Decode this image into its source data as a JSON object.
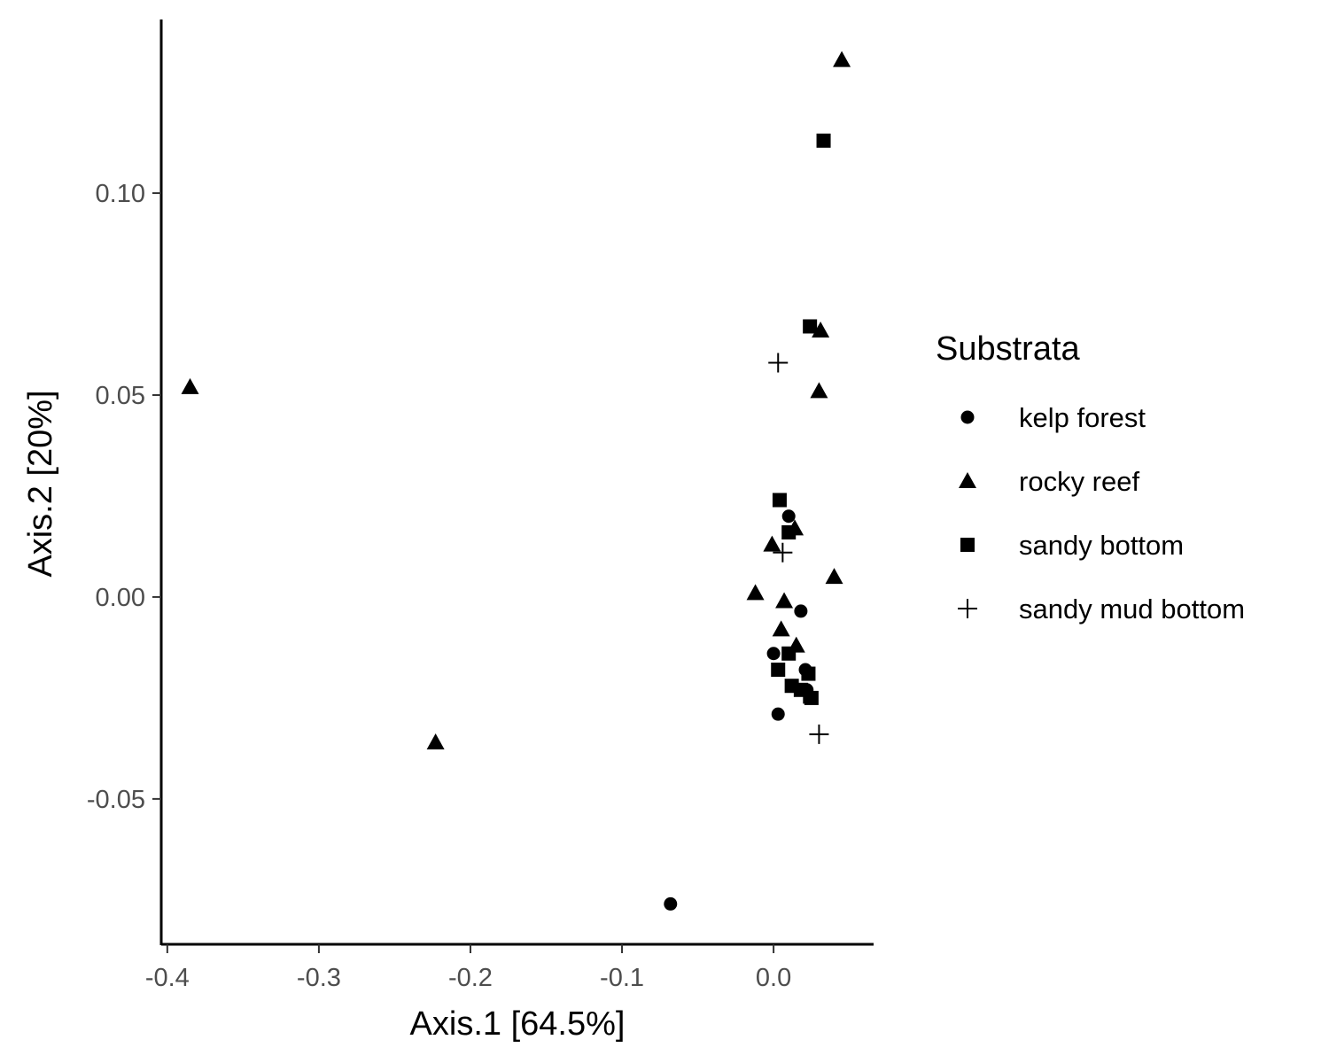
{
  "chart_data": {
    "type": "scatter",
    "xlabel": "Axis.1   [64.5%]",
    "ylabel": "Axis.2   [20%]",
    "xlim": [
      -0.404,
      0.066
    ],
    "ylim": [
      -0.086,
      0.143
    ],
    "xticks": [
      -0.4,
      -0.3,
      -0.2,
      -0.1,
      0.0
    ],
    "xtick_labels": [
      "-0.4",
      "-0.3",
      "-0.2",
      "-0.1",
      "0.0"
    ],
    "yticks": [
      -0.05,
      0.0,
      0.05,
      0.1
    ],
    "ytick_labels": [
      "-0.05",
      "0.00",
      "0.05",
      "0.10"
    ],
    "grid": false,
    "legend": {
      "title": "Substrata",
      "position": "right"
    },
    "series": [
      {
        "name": "kelp forest",
        "shape": "circle",
        "points": [
          [
            -0.068,
            -0.076
          ],
          [
            0.003,
            -0.029
          ],
          [
            0.0,
            -0.014
          ],
          [
            0.01,
            0.02
          ],
          [
            0.018,
            -0.0035
          ],
          [
            0.021,
            -0.018
          ],
          [
            0.022,
            -0.023
          ]
        ]
      },
      {
        "name": "rocky reef",
        "shape": "triangle",
        "points": [
          [
            0.045,
            0.133
          ],
          [
            -0.385,
            0.052
          ],
          [
            -0.223,
            -0.036
          ],
          [
            0.031,
            0.066
          ],
          [
            0.03,
            0.051
          ],
          [
            0.014,
            0.017
          ],
          [
            -0.001,
            0.013
          ],
          [
            -0.012,
            0.001
          ],
          [
            0.04,
            0.005
          ],
          [
            0.007,
            -0.001
          ],
          [
            0.005,
            -0.008
          ],
          [
            0.015,
            -0.012
          ]
        ]
      },
      {
        "name": "sandy bottom",
        "shape": "square",
        "points": [
          [
            0.033,
            0.113
          ],
          [
            0.024,
            0.067
          ],
          [
            0.004,
            0.024
          ],
          [
            0.01,
            0.016
          ],
          [
            0.01,
            -0.014
          ],
          [
            0.003,
            -0.018
          ],
          [
            0.023,
            -0.019
          ],
          [
            0.012,
            -0.022
          ],
          [
            0.018,
            -0.023
          ],
          [
            0.025,
            -0.025
          ]
        ]
      },
      {
        "name": "sandy mud bottom",
        "shape": "plus",
        "points": [
          [
            0.003,
            0.058
          ],
          [
            0.006,
            0.011
          ],
          [
            0.03,
            -0.034
          ],
          [
            0.02,
            -0.024
          ]
        ]
      }
    ]
  }
}
